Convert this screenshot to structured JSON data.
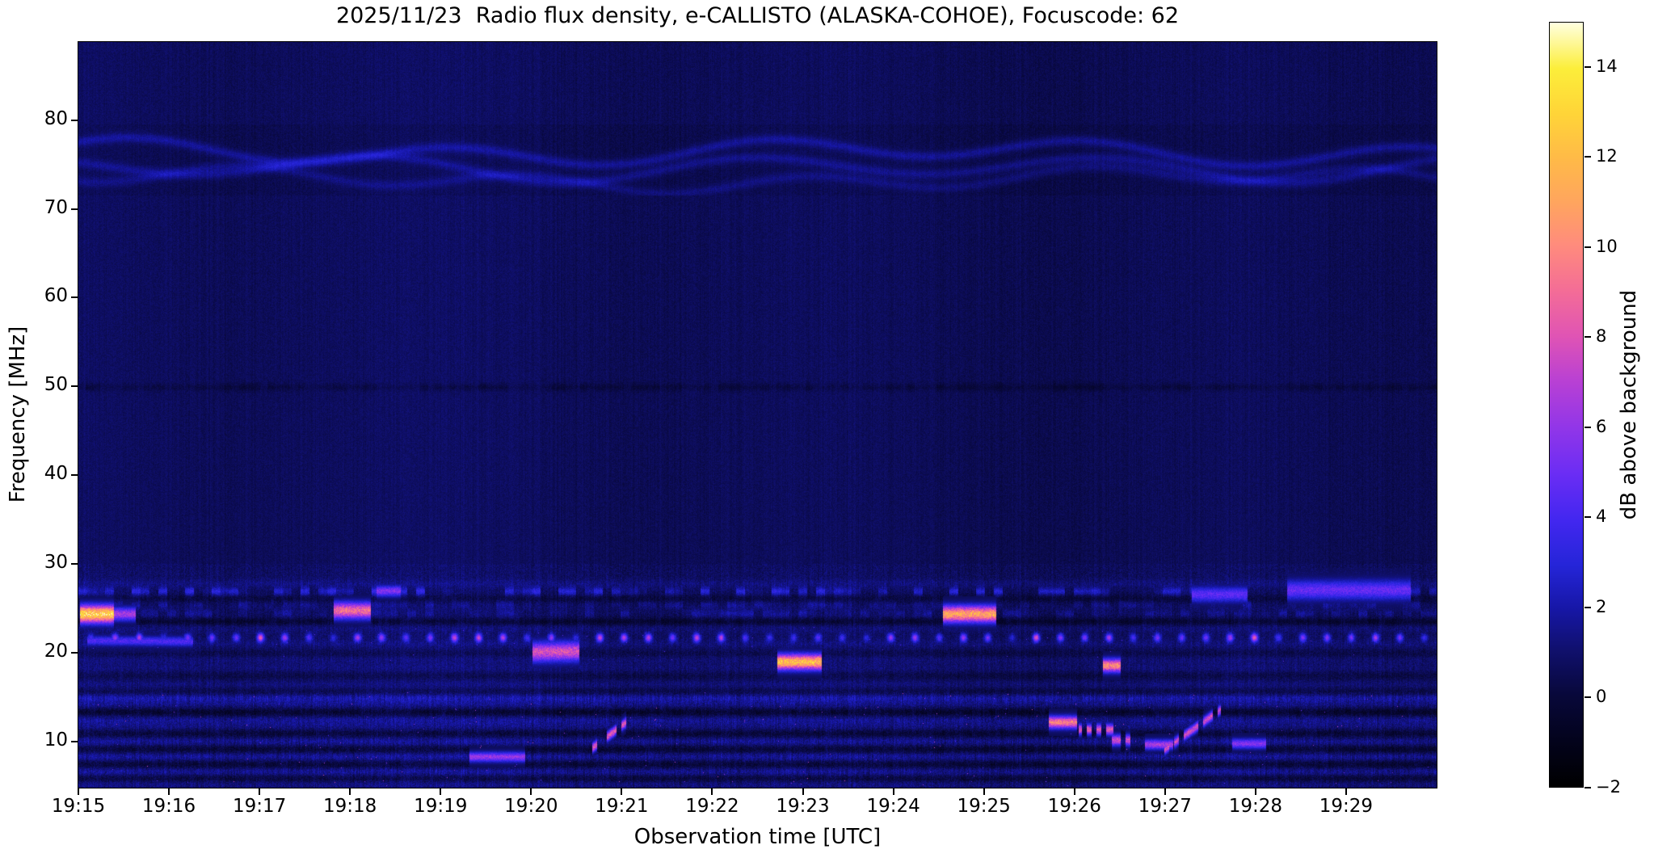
{
  "title": "2025/11/23  Radio flux density, e-CALLISTO (ALASKA-COHOE), Focuscode: 62",
  "chart_data": {
    "type": "heatmap",
    "subtype": "radio-spectrogram",
    "meta": {
      "date": "2025/11/23",
      "instrument": "e-CALLISTO",
      "station": "ALASKA-COHOE",
      "focuscode": "62"
    },
    "xlabel": "Observation time [UTC]",
    "ylabel": "Frequency [MHz]",
    "x_start": "19:15",
    "x_end": "19:30",
    "x_span_minutes": 15,
    "x_tick_labels": [
      "19:15",
      "19:16",
      "19:17",
      "19:18",
      "19:19",
      "19:20",
      "19:21",
      "19:22",
      "19:23",
      "19:24",
      "19:25",
      "19:26",
      "19:27",
      "19:28",
      "19:29"
    ],
    "x_tick_minutes": [
      0,
      1,
      2,
      3,
      4,
      5,
      6,
      7,
      8,
      9,
      10,
      11,
      12,
      13,
      14
    ],
    "y_ticks_mhz": [
      80,
      70,
      60,
      50,
      40,
      30,
      20,
      10
    ],
    "y_range_mhz": [
      4.8,
      88.8
    ],
    "background_level_db": 0.75,
    "colorbar": {
      "label": "dB above background",
      "tick_values": [
        14,
        12,
        10,
        8,
        6,
        4,
        2,
        0,
        -2
      ],
      "tick_labels": [
        "14",
        "12",
        "10",
        "8",
        "6",
        "4",
        "2",
        "0",
        "−2"
      ],
      "range_db": [
        -2,
        15
      ],
      "stops": [
        {
          "p": 0.0,
          "c": "#000000"
        },
        {
          "p": 0.06,
          "c": "#03031c"
        },
        {
          "p": 0.12,
          "c": "#08083a"
        },
        {
          "p": 0.18,
          "c": "#10106e"
        },
        {
          "p": 0.235,
          "c": "#1717a8"
        },
        {
          "p": 0.29,
          "c": "#2525d8"
        },
        {
          "p": 0.35,
          "c": "#4327f0"
        },
        {
          "p": 0.41,
          "c": "#6b2df4"
        },
        {
          "p": 0.47,
          "c": "#9136e8"
        },
        {
          "p": 0.53,
          "c": "#b840d4"
        },
        {
          "p": 0.59,
          "c": "#e054b4"
        },
        {
          "p": 0.65,
          "c": "#f46d96"
        },
        {
          "p": 0.71,
          "c": "#ff8c7c"
        },
        {
          "p": 0.765,
          "c": "#ffa55e"
        },
        {
          "p": 0.82,
          "c": "#ffb948"
        },
        {
          "p": 0.88,
          "c": "#ffd438"
        },
        {
          "p": 0.94,
          "c": "#fcee3a"
        },
        {
          "p": 1.0,
          "c": "#ffffe0"
        }
      ]
    },
    "ripple_band": {
      "desc": "faint wavy interference ripples near 73-78 MHz across full duration",
      "band": [
        71.5,
        79.5
      ],
      "backdrop_db": -0.18,
      "lines": [
        {
          "f": 76.4,
          "a1": 1.1,
          "w1": 0.016,
          "p1": 0.5,
          "a2": 0.6,
          "w2": 0.006,
          "p2": 1.7,
          "amp": 1.25
        },
        {
          "f": 74.6,
          "a1": 1.2,
          "w1": 0.014,
          "p1": 2.6,
          "a2": 0.5,
          "w2": 0.0075,
          "p2": 0.0,
          "amp": 1.05
        },
        {
          "f": 73.3,
          "a1": 0.9,
          "w1": 0.018,
          "p1": 4.2,
          "a2": 0.7,
          "w2": 0.005,
          "p2": 0.9,
          "amp": 0.85
        }
      ]
    },
    "dark_line_mhz": 49.9,
    "rows": [
      {
        "f": 27.8,
        "amp": 0.5,
        "type": "speckle"
      },
      {
        "f": 26.9,
        "amp": 1.1,
        "type": "dashes"
      },
      {
        "f": 26.1,
        "amp": -0.85,
        "type": "dark"
      },
      {
        "f": 25.4,
        "amp": 0.5,
        "type": "dashes"
      },
      {
        "f": 24.4,
        "amp": 0.5,
        "type": "dashes"
      },
      {
        "f": 23.5,
        "amp": -1.25,
        "type": "dark"
      },
      {
        "f": 22.8,
        "amp": 0.4,
        "type": "speckle"
      },
      {
        "f": 21.7,
        "amp": 0,
        "type": "dots"
      },
      {
        "f": 21.0,
        "amp": 0.45,
        "type": "speckle"
      },
      {
        "f": 19.9,
        "amp": -0.5,
        "type": "dark"
      },
      {
        "f": 19.2,
        "amp": 0.35,
        "type": "speckle"
      },
      {
        "f": 18.3,
        "amp": 0.35,
        "type": "speckle"
      },
      {
        "f": 17.4,
        "amp": -0.55,
        "type": "dark"
      },
      {
        "f": 16.4,
        "amp": 0.4,
        "type": "speckle"
      },
      {
        "f": 15.6,
        "amp": -0.6,
        "type": "dark"
      },
      {
        "f": 14.9,
        "amp": 1.25,
        "type": "speckle"
      },
      {
        "f": 14.2,
        "amp": 0.6,
        "type": "speckle"
      },
      {
        "f": 13.3,
        "amp": -1.35,
        "type": "dark"
      },
      {
        "f": 12.4,
        "amp": 0.8,
        "type": "speckle"
      },
      {
        "f": 11.7,
        "amp": 0.5,
        "type": "speckle"
      },
      {
        "f": 10.9,
        "amp": -1.05,
        "type": "dark"
      },
      {
        "f": 10.0,
        "amp": 0.85,
        "type": "speckle"
      },
      {
        "f": 9.1,
        "amp": -1.15,
        "type": "dark"
      },
      {
        "f": 8.3,
        "amp": 0.95,
        "type": "speckle"
      },
      {
        "f": 7.4,
        "amp": -1.1,
        "type": "dark"
      },
      {
        "f": 6.6,
        "amp": 0.9,
        "type": "speckle"
      },
      {
        "f": 5.8,
        "amp": -0.95,
        "type": "dark"
      },
      {
        "f": 5.2,
        "amp": 0.6,
        "type": "speckle"
      }
    ],
    "features": [
      {
        "t0": 0.02,
        "t1": 0.38,
        "f0": 24.4,
        "f1": 24.4,
        "peak": 12.5,
        "w": 1.6,
        "desc": "bright orange-yellow narrowband burst 24.4 MHz at 19:15.0-19:15.4"
      },
      {
        "t0": 0.3,
        "t1": 0.62,
        "f0": 24.4,
        "f1": 24.4,
        "peak": 6,
        "w": 1.2,
        "desc": "violet tail of 19:15 burst"
      },
      {
        "t0": 0.1,
        "t1": 1.25,
        "f0": 21.4,
        "f1": 21.3,
        "peak": 3.6,
        "w": 0.9,
        "desc": "faint blue horizontal streak 21.3 MHz"
      },
      {
        "t0": 2.82,
        "t1": 3.22,
        "f0": 24.8,
        "f1": 24.8,
        "peak": 8.5,
        "w": 1.5,
        "desc": "pink dash 24.8 MHz near 19:18"
      },
      {
        "t0": 3.3,
        "t1": 3.55,
        "f0": 27.0,
        "f1": 27.0,
        "peak": 5,
        "w": 1.0,
        "desc": "blue-violet dash 27 MHz 19:18.4"
      },
      {
        "t0": 5.02,
        "t1": 5.52,
        "f0": 20.1,
        "f1": 20.2,
        "peak": 7.2,
        "w": 1.8,
        "desc": "pink blob 20 MHz near 19:20.3"
      },
      {
        "t0": 7.72,
        "t1": 8.2,
        "f0": 19.0,
        "f1": 19.0,
        "peak": 11.5,
        "w": 1.4,
        "desc": "orange-yellow dash 19 MHz near 19:23"
      },
      {
        "t0": 9.55,
        "t1": 10.12,
        "f0": 24.4,
        "f1": 24.4,
        "peak": 10.5,
        "w": 1.5,
        "desc": "orange-pink segment 24.4 MHz 19:24.6-19:25.1"
      },
      {
        "t0": 11.32,
        "t1": 11.5,
        "f0": 18.6,
        "f1": 18.6,
        "peak": 9.5,
        "w": 1.2,
        "desc": "small orange dash 18.6 MHz 19:26.4"
      },
      {
        "t0": 5.66,
        "t1": 6.14,
        "f0": 9.2,
        "f1": 13.0,
        "peak": 7.5,
        "w": 0.9,
        "dotted": true,
        "desc": "rising dotted pink drift 9-13 MHz near 19:21"
      },
      {
        "t0": 11.95,
        "t1": 12.6,
        "f0": 8.8,
        "f1": 13.6,
        "peak": 7,
        "w": 0.9,
        "dotted": true,
        "desc": "rising dotted pink drift 9-13.5 MHz near 19:27"
      },
      {
        "t0": 10.72,
        "t1": 11.02,
        "f0": 12.2,
        "f1": 12.2,
        "peak": 9,
        "w": 1.1,
        "desc": "orange dash 12.2 MHz 19:25.8"
      },
      {
        "t0": 11.05,
        "t1": 11.42,
        "f0": 11.4,
        "f1": 11.4,
        "peak": 7.5,
        "w": 1.0,
        "dotted": true,
        "desc": "pink dotted dash 11.4 MHz 19:26.1"
      },
      {
        "t0": 11.42,
        "t1": 11.78,
        "f0": 10.2,
        "f1": 10.2,
        "peak": 7,
        "w": 1.0,
        "dotted": true,
        "desc": "pink dotted dash 10.2 MHz 19:26.5"
      },
      {
        "t0": 11.78,
        "t1": 12.08,
        "f0": 9.7,
        "f1": 9.7,
        "peak": 6,
        "w": 0.9,
        "desc": "magenta dash 9.7 MHz 19:26.9"
      },
      {
        "t0": 4.32,
        "t1": 4.92,
        "f0": 8.3,
        "f1": 8.3,
        "peak": 5.5,
        "w": 0.9,
        "desc": "magenta streak 8.3 MHz 19:19.4"
      },
      {
        "t0": 12.75,
        "t1": 13.1,
        "f0": 9.8,
        "f1": 9.8,
        "peak": 5,
        "w": 0.9,
        "desc": "violet dash 9.8 MHz 19:27.9"
      },
      {
        "t0": 13.35,
        "t1": 14.7,
        "f0": 27.1,
        "f1": 27.1,
        "peak": 4.2,
        "w": 1.8,
        "desc": "bright blue patch 27 MHz 19:28.3-19:29.7"
      },
      {
        "t0": 12.3,
        "t1": 12.9,
        "f0": 26.6,
        "f1": 26.6,
        "peak": 4.0,
        "w": 1.4,
        "desc": "bright blue patch 26.6 MHz 19:27.3"
      }
    ]
  }
}
